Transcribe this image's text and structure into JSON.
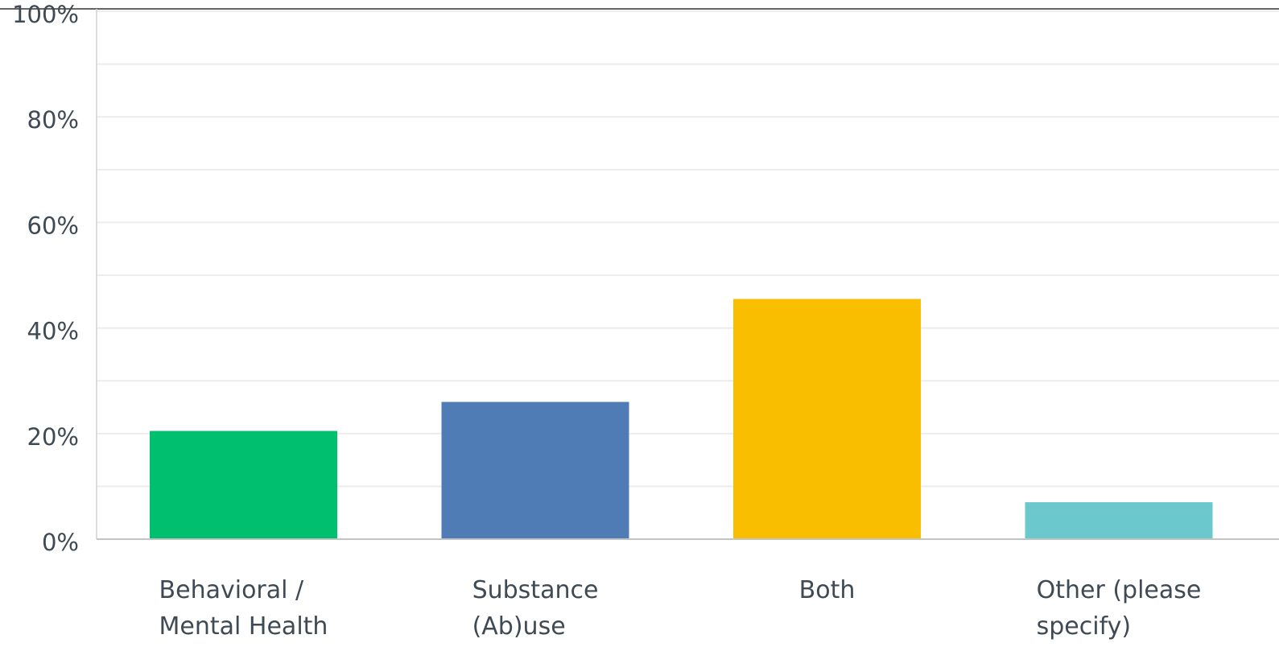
{
  "chart_data": {
    "type": "bar",
    "categories": [
      [
        "Behavioral /",
        "Mental Health"
      ],
      [
        "Substance",
        "(Ab)use"
      ],
      [
        "Both"
      ],
      [
        "Other (please",
        "specify)"
      ]
    ],
    "values": [
      20.5,
      26,
      45.5,
      7
    ],
    "colors": [
      "#00bf6f",
      "#507cb6",
      "#f9be00",
      "#6bc8cd"
    ],
    "ylim": [
      0,
      100
    ],
    "yticks": [
      0,
      20,
      40,
      60,
      80,
      100
    ],
    "ytick_labels": [
      "0%",
      "20%",
      "40%",
      "60%",
      "80%",
      "100%"
    ],
    "grid": true,
    "title": "",
    "xlabel": "",
    "ylabel": ""
  }
}
